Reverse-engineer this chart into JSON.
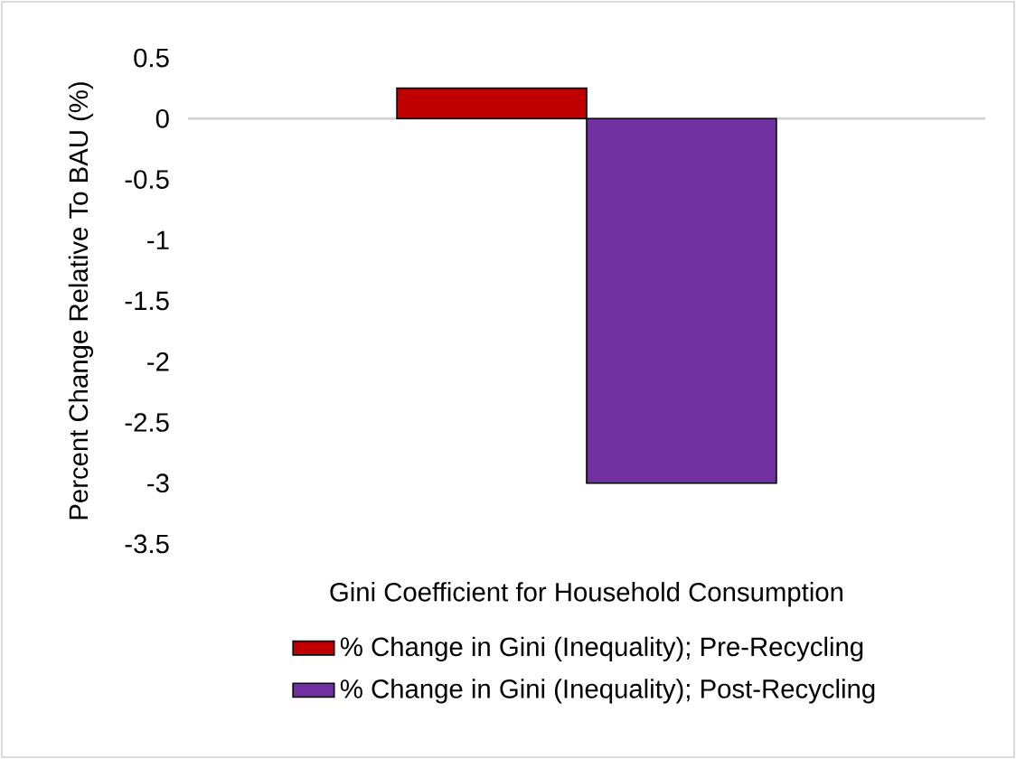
{
  "chart_data": {
    "type": "bar",
    "ylabel": "Percent Change Relative To BAU (%)",
    "categories": [
      "Gini Coefficient for Household Consumption"
    ],
    "series": [
      {
        "name": "% Change in Gini (Inequality); Pre-Recycling",
        "color": "#c00000",
        "values": [
          0.25
        ]
      },
      {
        "name": "% Change in Gini (Inequality); Post-Recycling",
        "color": "#7030a0",
        "values": [
          -3.0
        ]
      }
    ],
    "ylim": [
      -3.5,
      0.5
    ],
    "yticks": [
      -3.5,
      -3,
      -2.5,
      -2,
      -1.5,
      -1,
      -0.5,
      0,
      0.5
    ],
    "legend": "bottom"
  }
}
